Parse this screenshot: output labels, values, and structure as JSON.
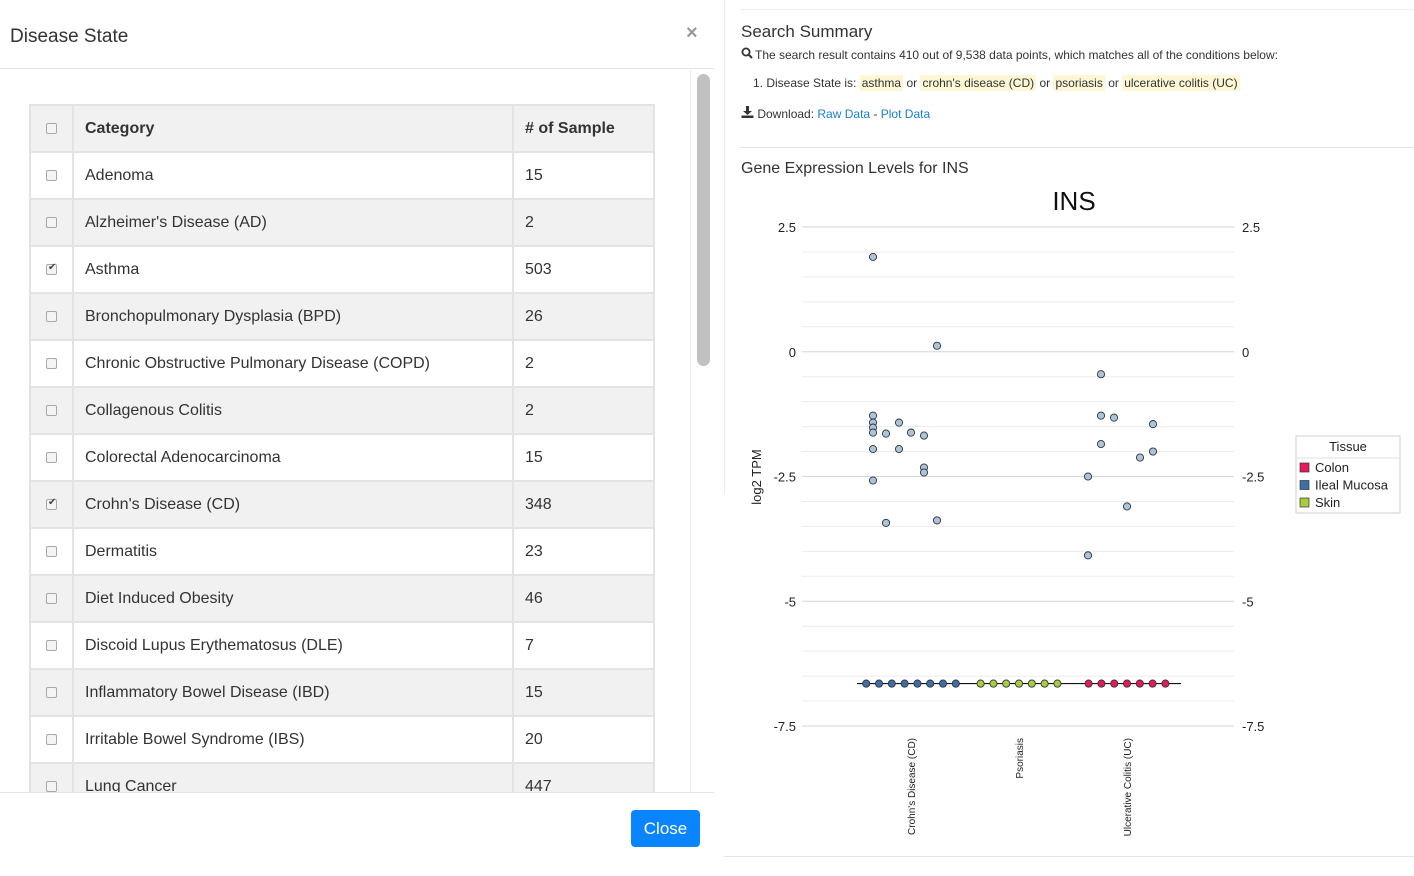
{
  "modal": {
    "title": "Disease State",
    "close_x": "×",
    "close_button": "Close",
    "table": {
      "headers": [
        "Category",
        "# of Sample"
      ],
      "rows": [
        {
          "category": "Adenoma",
          "count": "15",
          "checked": false
        },
        {
          "category": "Alzheimer's Disease (AD)",
          "count": "2",
          "checked": false
        },
        {
          "category": "Asthma",
          "count": "503",
          "checked": true
        },
        {
          "category": "Bronchopulmonary Dysplasia (BPD)",
          "count": "26",
          "checked": false
        },
        {
          "category": "Chronic Obstructive Pulmonary Disease (COPD)",
          "count": "2",
          "checked": false
        },
        {
          "category": "Collagenous Colitis",
          "count": "2",
          "checked": false
        },
        {
          "category": "Colorectal Adenocarcinoma",
          "count": "15",
          "checked": false
        },
        {
          "category": "Crohn's Disease (CD)",
          "count": "348",
          "checked": true
        },
        {
          "category": "Dermatitis",
          "count": "23",
          "checked": false
        },
        {
          "category": "Diet Induced Obesity",
          "count": "46",
          "checked": false
        },
        {
          "category": "Discoid Lupus Erythematosus (DLE)",
          "count": "7",
          "checked": false
        },
        {
          "category": "Inflammatory Bowel Disease (IBD)",
          "count": "15",
          "checked": false
        },
        {
          "category": "Irritable Bowel Syndrome (IBS)",
          "count": "20",
          "checked": false
        },
        {
          "category": "Lung Cancer",
          "count": "447",
          "checked": false
        }
      ]
    }
  },
  "summary": {
    "title": "Search Summary",
    "text": "The search result contains 410 out of 9,538 data points, which matches all of the conditions below:",
    "condition_prefix": "1. Disease State is:",
    "conditions": [
      "asthma",
      "crohn's disease (CD)",
      "psoriasis",
      "ulcerative colitis (UC)"
    ],
    "or_word": "or",
    "download_label": "Download:",
    "raw_data_link": "Raw Data",
    "separator": "-",
    "plot_data_link": "Plot Data"
  },
  "gene": {
    "section_title": "Gene Expression Levels for INS"
  },
  "chart_data": {
    "type": "scatter",
    "title": "INS",
    "ylabel": "log2 TPM",
    "xlabel": "",
    "ylim": [
      -7.5,
      2.5
    ],
    "yticks": [
      "2.5",
      "0",
      "-2.5",
      "-5",
      "-7.5"
    ],
    "ytick_values": [
      2.5,
      0,
      -2.5,
      -5,
      -7.5
    ],
    "categories": [
      "Crohn's Disease (CD)",
      "Psoriasis",
      "Ulcerative Colitis (UC)"
    ],
    "legend": {
      "title": "Tissue",
      "position": "right",
      "items": [
        {
          "name": "Colon",
          "color": "#e8185f"
        },
        {
          "name": "Ileal Mucosa",
          "color": "#3d6ea8"
        },
        {
          "name": "Skin",
          "color": "#a7cc3f"
        }
      ]
    },
    "series": [
      {
        "name": "Ileal Mucosa",
        "category": "Crohn's Disease (CD)",
        "color": "#3d6ea8",
        "points": [
          -6.65,
          -6.65,
          -6.65,
          -6.65,
          -6.65,
          -6.65,
          -6.65,
          -6.65
        ]
      },
      {
        "name": "Skin",
        "category": "Psoriasis",
        "color": "#a7cc3f",
        "points": [
          -6.65,
          -6.65,
          -6.65,
          -6.65,
          -6.65,
          -6.65,
          -6.65
        ]
      },
      {
        "name": "Colon",
        "category": "Ulcerative Colitis (UC)",
        "color": "#e8185f",
        "points": [
          -6.65,
          -6.65,
          -6.65,
          -6.65,
          -6.65,
          -6.65,
          -6.65
        ]
      },
      {
        "name": "",
        "category": "Crohn's Disease (CD)",
        "color": "#a9c4dc",
        "points": [
          1.9,
          0.12,
          -1.28,
          -1.42,
          -1.52,
          -1.62,
          -1.64,
          -1.42,
          -1.62,
          -1.68,
          -1.95,
          -1.95,
          -2.32,
          -2.42,
          -2.58,
          -3.43,
          -3.38
        ]
      },
      {
        "name": "",
        "category": "Ulcerative Colitis (UC)",
        "color": "#a9c4dc",
        "points": [
          -0.45,
          -1.28,
          -1.32,
          -1.45,
          -1.85,
          -2.0,
          -2.12,
          -2.5,
          -3.1,
          -4.08
        ]
      }
    ]
  }
}
